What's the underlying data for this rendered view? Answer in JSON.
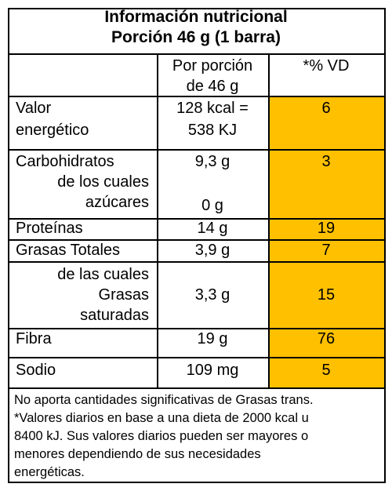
{
  "title": [
    "Información nutricional",
    "Porción 46 g (1 barra)"
  ],
  "table": {
    "header": {
      "amount": [
        "Por porción",
        "de 46 g"
      ],
      "vd": "*% VD"
    },
    "rows": [
      {
        "label": [
          "Valor",
          "energético"
        ],
        "amount": [
          "128 kcal =",
          "538 KJ"
        ],
        "vd": "6"
      },
      {
        "label": [
          "Carbohidratos"
        ],
        "sublabel": [
          "de los cuales",
          "azúcares"
        ],
        "amount": [
          "9,3 g"
        ],
        "subamount": "0 g",
        "vd": "3"
      },
      {
        "label": [
          "Proteínas"
        ],
        "amount": [
          "14 g"
        ],
        "vd": "19"
      },
      {
        "label": [
          "Grasas Totales"
        ],
        "amount": [
          "3,9 g"
        ],
        "vd": "7"
      },
      {
        "sublabel": [
          "de las cuales",
          "Grasas",
          "saturadas"
        ],
        "amount": [
          "3,3 g"
        ],
        "vd": "15"
      },
      {
        "label": [
          "Fibra"
        ],
        "amount": [
          "19 g"
        ],
        "vd": "76"
      },
      {
        "label": [
          "Sodio"
        ],
        "amount": [
          "109 mg"
        ],
        "vd": "5"
      }
    ]
  },
  "footnote": [
    "No aporta cantidades significativas de Grasas trans.",
    "*Valores diarios en base a una dieta de 2000 kcal u",
    "8400 kJ. Sus valores diarios pueden ser mayores o",
    "menores dependiendo de sus necesidades",
    "energéticas."
  ]
}
